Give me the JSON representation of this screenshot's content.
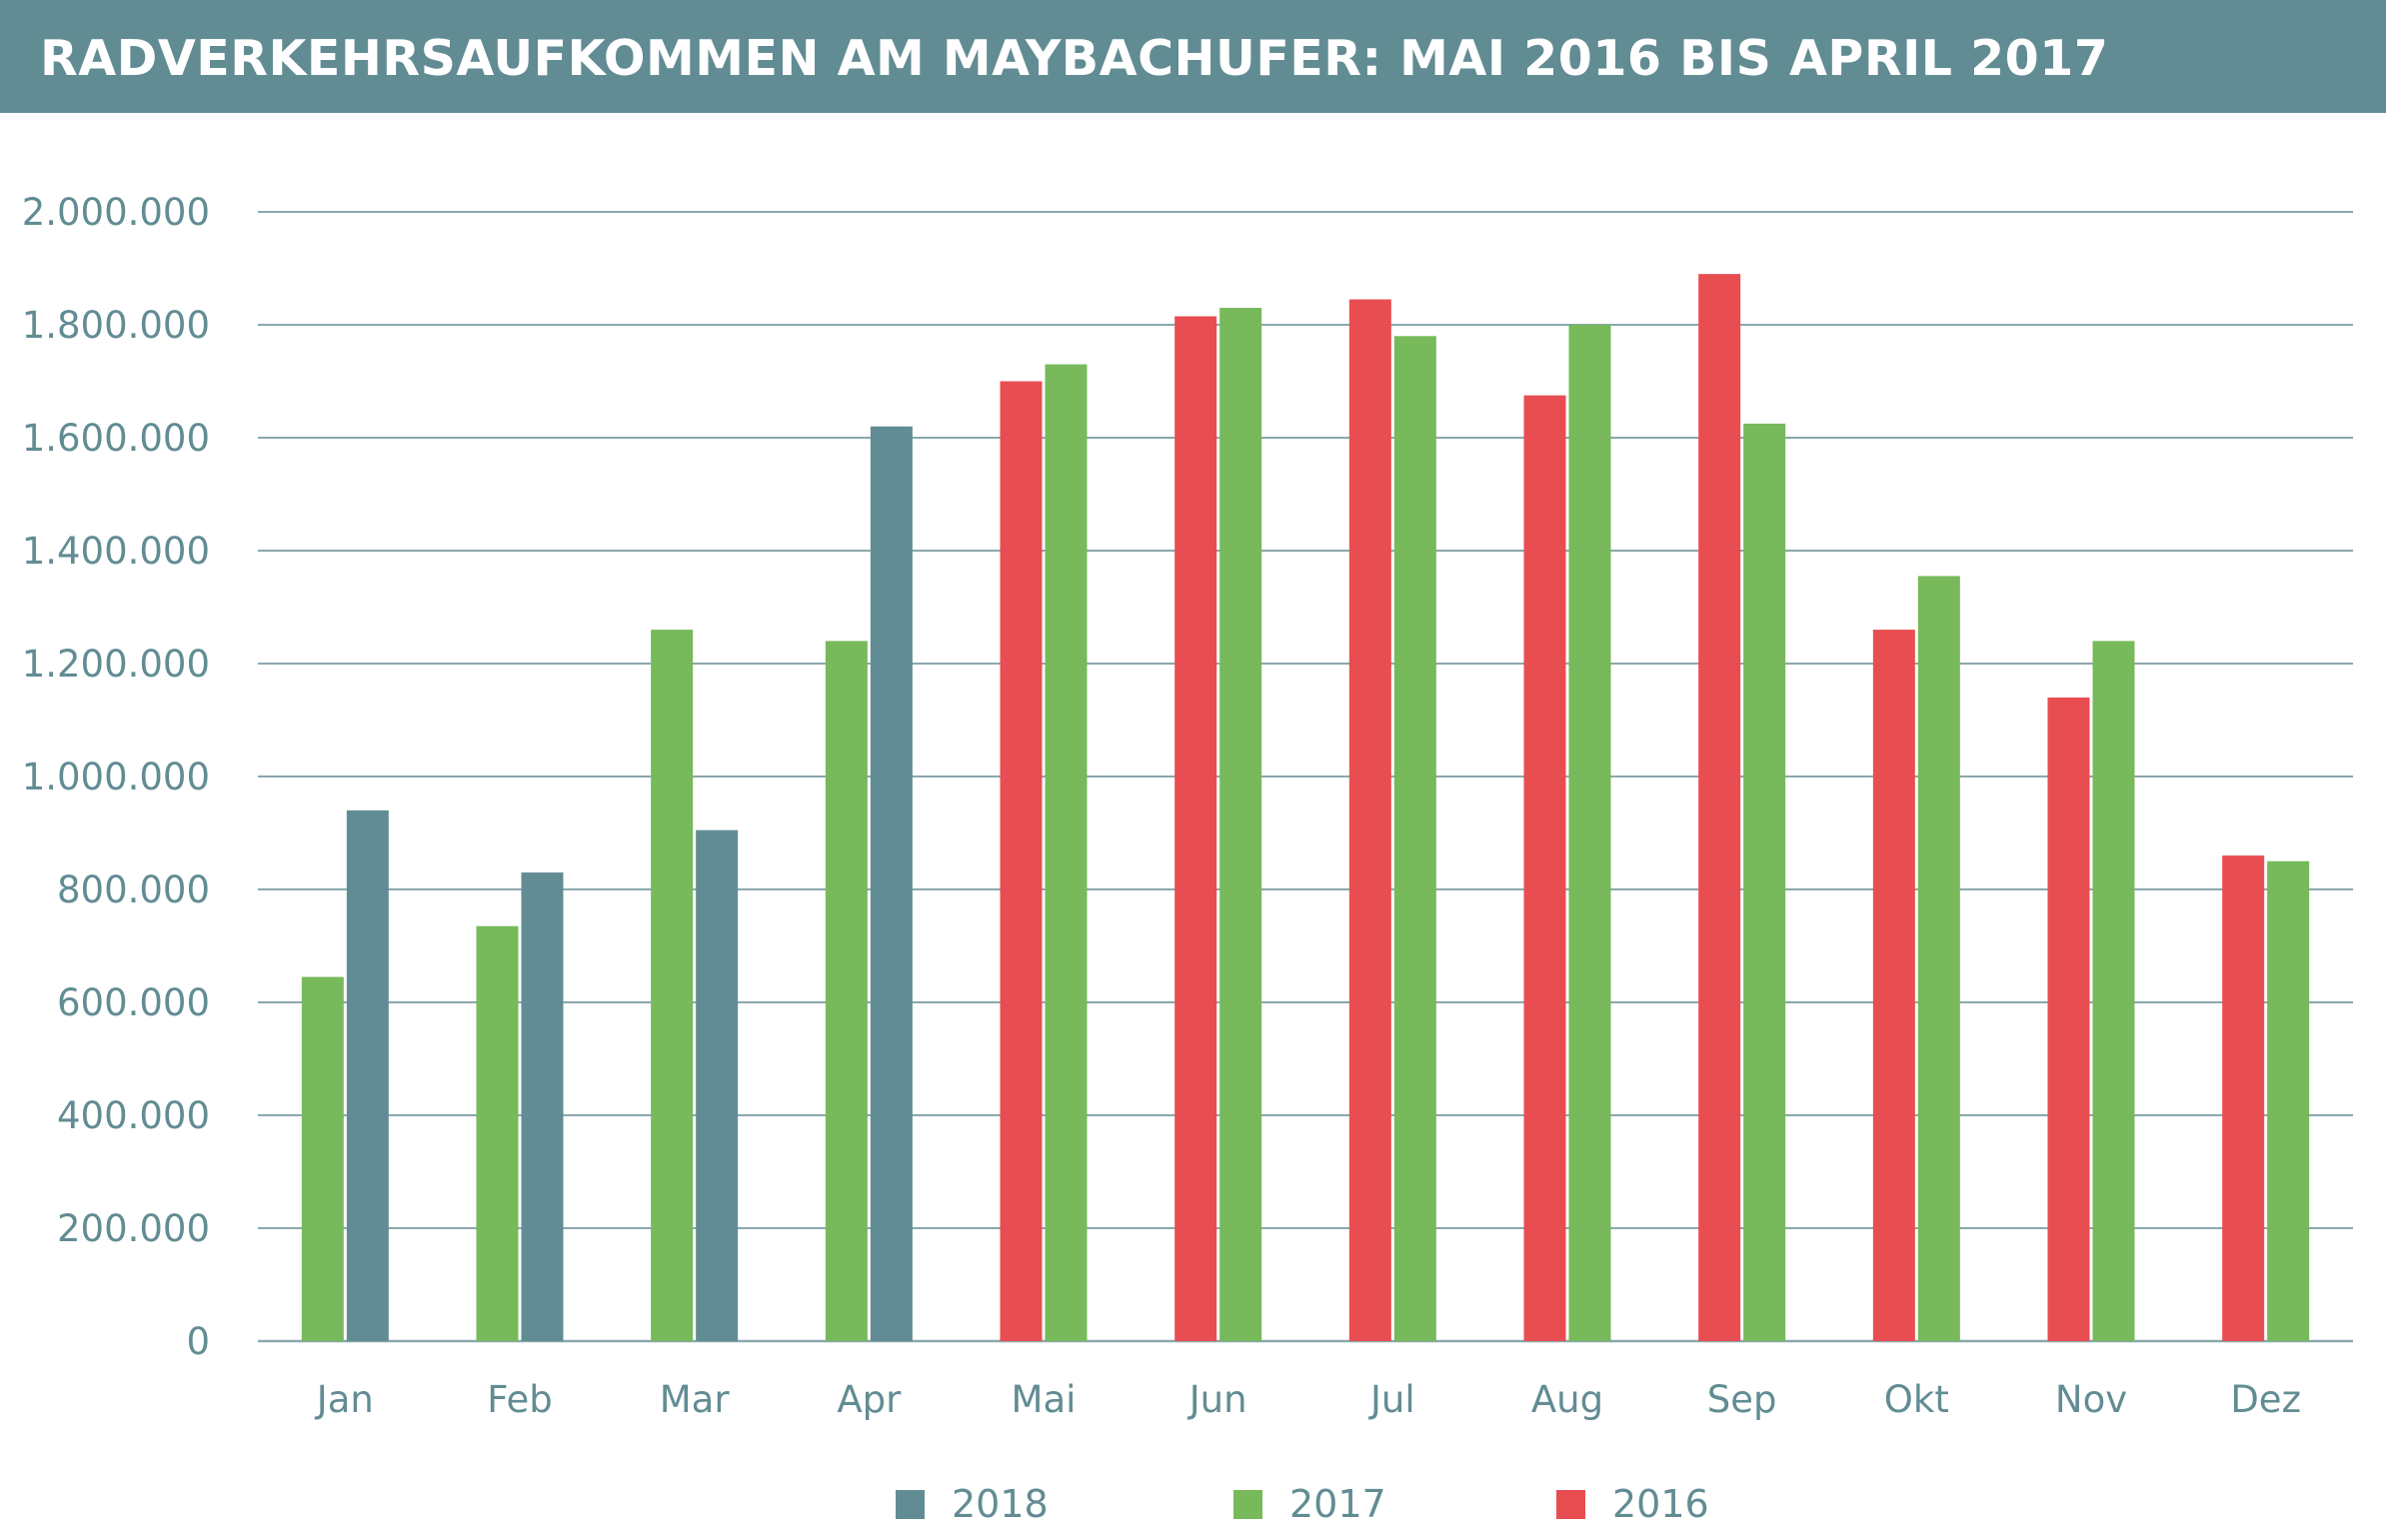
{
  "title": "RADVERKEHRSAUFKOMMEN AM MAYBACHUFER: MAI 2016 BIS APRIL 2017",
  "colors": {
    "header": "#628c93",
    "grid": "#8aa8ad",
    "axis_text": "#628c93",
    "2018": "#628c93",
    "2017": "#77b95b",
    "2016": "#e84d52"
  },
  "chart_data": {
    "type": "bar",
    "title": "RADVERKEHRSAUFKOMMEN AM MAYBACHUFER: MAI 2016 BIS APRIL 2017",
    "xlabel": "",
    "ylabel": "",
    "ylim": [
      0,
      2000000
    ],
    "y_ticks": [
      0,
      200000,
      400000,
      600000,
      800000,
      1000000,
      1200000,
      1400000,
      1600000,
      1800000,
      2000000
    ],
    "y_tick_labels": [
      "0",
      "200.000",
      "400.000",
      "600.000",
      "800.000",
      "1.000.000",
      "1.200.000",
      "1.400.000",
      "1.600.000",
      "1.800.000",
      "2.000.000"
    ],
    "grid": true,
    "legend_position": "bottom",
    "categories": [
      "Jan",
      "Feb",
      "Mar",
      "Apr",
      "Mai",
      "Jun",
      "Jul",
      "Aug",
      "Sep",
      "Okt",
      "Nov",
      "Dez"
    ],
    "bar_order": [
      "2016",
      "2017",
      "2018"
    ],
    "series": [
      {
        "name": "2018",
        "color": "#628c93",
        "values": [
          940000,
          830000,
          905000,
          1620000,
          null,
          null,
          null,
          null,
          null,
          null,
          null,
          null
        ]
      },
      {
        "name": "2017",
        "color": "#77b95b",
        "values": [
          645000,
          735000,
          1260000,
          1240000,
          1730000,
          1830000,
          1780000,
          1800000,
          1625000,
          1355000,
          1240000,
          850000
        ]
      },
      {
        "name": "2016",
        "color": "#e84d52",
        "values": [
          null,
          null,
          null,
          null,
          1700000,
          1815000,
          1845000,
          1675000,
          1890000,
          1260000,
          1140000,
          860000
        ]
      }
    ],
    "legend": [
      "2018",
      "2017",
      "2016"
    ]
  }
}
